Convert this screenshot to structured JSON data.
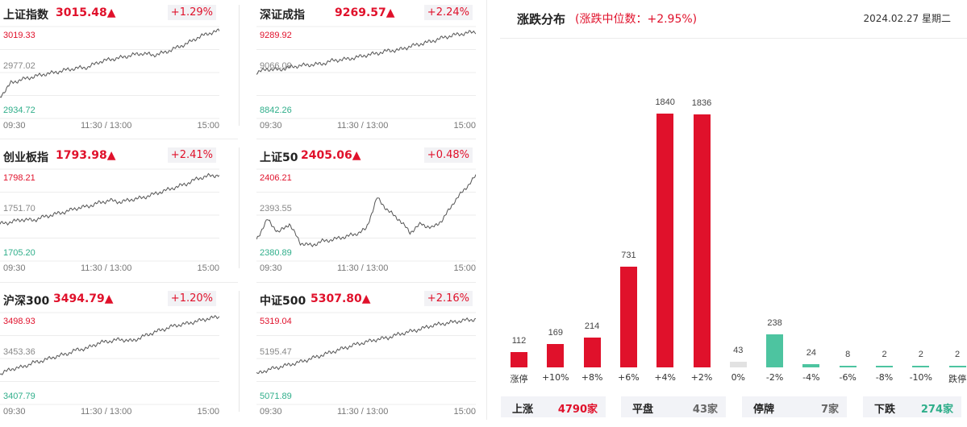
{
  "indices": [
    {
      "name": "上证指数",
      "value": "3015.48▲",
      "pct": "+1.29%",
      "hi": "3019.33",
      "mid": "2977.02",
      "lo": "2934.72"
    },
    {
      "name": "深证成指",
      "value": "9269.57▲",
      "pct": "+2.24%",
      "hi": "9289.92",
      "mid": "9066.09",
      "lo": "8842.26"
    },
    {
      "name": "创业板指",
      "value": "1793.98▲",
      "pct": "+2.41%",
      "hi": "1798.21",
      "mid": "1751.70",
      "lo": "1705.20"
    },
    {
      "name": "上证50",
      "value": "2405.06▲",
      "pct": "+0.48%",
      "hi": "2406.21",
      "mid": "2393.55",
      "lo": "2380.89"
    },
    {
      "name": "沪深300",
      "value": "3494.79▲",
      "pct": "+1.20%",
      "hi": "3498.93",
      "mid": "3453.36",
      "lo": "3407.79"
    },
    {
      "name": "中证500",
      "value": "5307.80▲",
      "pct": "+2.16%",
      "hi": "5319.04",
      "mid": "5195.47",
      "lo": "5071.89"
    }
  ],
  "time_axis": {
    "start": "09:30",
    "mid": "11:30 / 13:00",
    "end": "15:00"
  },
  "distribution": {
    "title": "涨跌分布",
    "subtitle": "(涨跌中位数：+2.95%)",
    "date": "2024.02.27 星期二",
    "bins": [
      {
        "label": "涨停",
        "value": 112,
        "color": "#e0112b"
      },
      {
        "label": "+10%",
        "value": 169,
        "color": "#e0112b"
      },
      {
        "label": "+8%",
        "value": 214,
        "color": "#e0112b"
      },
      {
        "label": "+6%",
        "value": 731,
        "color": "#e0112b"
      },
      {
        "label": "+4%",
        "value": 1840,
        "color": "#e0112b"
      },
      {
        "label": "+2%",
        "value": 1836,
        "color": "#e0112b"
      },
      {
        "label": "0%",
        "value": 43,
        "color": "#e2e2e2"
      },
      {
        "label": "-2%",
        "value": 238,
        "color": "#4dc4a0"
      },
      {
        "label": "-4%",
        "value": 24,
        "color": "#4dc4a0"
      },
      {
        "label": "-6%",
        "value": 8,
        "color": "#4dc4a0"
      },
      {
        "label": "-8%",
        "value": 2,
        "color": "#4dc4a0"
      },
      {
        "label": "-10%",
        "value": 2,
        "color": "#4dc4a0"
      },
      {
        "label": "跌停",
        "value": 2,
        "color": "#4dc4a0"
      }
    ]
  },
  "summary": [
    {
      "key": "上涨",
      "value": "4790家",
      "color": "#e0112b"
    },
    {
      "key": "平盘",
      "value": "43家",
      "color": "#666666"
    },
    {
      "key": "停牌",
      "value": "7家",
      "color": "#666666"
    },
    {
      "key": "下跌",
      "value": "274家",
      "color": "#2fae8a"
    }
  ],
  "colors": {
    "up": "#e0112b",
    "down": "#2fae8a",
    "flat": "#e2e2e2"
  }
}
